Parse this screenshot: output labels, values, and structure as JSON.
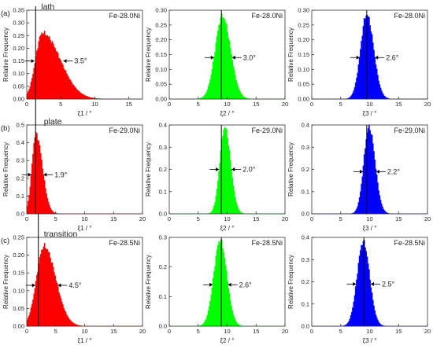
{
  "chart_data": [
    {
      "type": "area",
      "row_label": "(a)",
      "tag": "lath",
      "title": "Fe-28.0Ni",
      "ylabel": "Relative Frequency",
      "xlabel": "ξ1 / °",
      "color": "#ff0000",
      "xlim": [
        0,
        17
      ],
      "ylim": [
        0,
        0.35
      ],
      "xticks": [
        0,
        5,
        10,
        15
      ],
      "yticks": [
        0.0,
        0.05,
        0.1,
        0.15,
        0.2,
        0.25,
        0.3,
        0.35
      ],
      "peak_x": 2.3,
      "peak_y": 0.26,
      "sigma_left": 1.0,
      "sigma_right": 2.6,
      "vline_x": 1.3,
      "fwhm_label": "3.5°",
      "fwhm_y": 0.15
    },
    {
      "type": "area",
      "title": "Fe-28.0Ni",
      "ylabel": "Relative Frequency",
      "xlabel": "ξ2 / °",
      "color": "#00ff00",
      "xlim": [
        0,
        20
      ],
      "ylim": [
        0,
        0.3
      ],
      "xticks": [
        0,
        5,
        10,
        15,
        20
      ],
      "yticks": [
        0.0,
        0.05,
        0.1,
        0.15,
        0.2,
        0.25,
        0.3
      ],
      "peak_x": 9.2,
      "peak_y": 0.28,
      "sigma_left": 1.25,
      "sigma_right": 1.4,
      "vline_x": 9.0,
      "fwhm_label": "3.0°",
      "fwhm_y": 0.14
    },
    {
      "type": "area",
      "title": "Fe-28.0Ni",
      "ylabel": "Relative Frequency",
      "xlabel": "ξ3 / °",
      "color": "#0000ff",
      "xlim": [
        0,
        20
      ],
      "ylim": [
        0,
        0.3
      ],
      "xticks": [
        0,
        5,
        10,
        15,
        20
      ],
      "yticks": [
        0.0,
        0.05,
        0.1,
        0.15,
        0.2,
        0.25,
        0.3
      ],
      "peak_x": 9.5,
      "peak_y": 0.285,
      "sigma_left": 1.05,
      "sigma_right": 1.2,
      "vline_x": 9.5,
      "fwhm_label": "2.6°",
      "fwhm_y": 0.14
    },
    {
      "type": "area",
      "row_label": "(b)",
      "tag": "plate",
      "title": "Fe-29.0Ni",
      "ylabel": "Relative Frequency",
      "xlabel": "ξ1 / °",
      "color": "#ff0000",
      "xlim": [
        0,
        20
      ],
      "ylim": [
        0,
        0.5
      ],
      "xticks": [
        0,
        5,
        10,
        15,
        20
      ],
      "yticks": [
        0.0,
        0.1,
        0.2,
        0.3,
        0.4,
        0.5
      ],
      "peak_x": 1.6,
      "peak_y": 0.45,
      "sigma_left": 0.7,
      "sigma_right": 1.1,
      "vline_x": 2.0,
      "fwhm_label": "1.9°",
      "fwhm_y": 0.22
    },
    {
      "type": "area",
      "title": "Fe-29.0Ni",
      "ylabel": "Relative Frequency",
      "xlabel": "ξ2 / °",
      "color": "#00ff00",
      "xlim": [
        0,
        20
      ],
      "ylim": [
        0,
        0.4
      ],
      "xticks": [
        0,
        5,
        10,
        15,
        20
      ],
      "yticks": [
        0.0,
        0.1,
        0.2,
        0.3,
        0.4
      ],
      "peak_x": 9.6,
      "peak_y": 0.39,
      "sigma_left": 0.85,
      "sigma_right": 1.0,
      "vline_x": 9.0,
      "fwhm_label": "2.0°",
      "fwhm_y": 0.2
    },
    {
      "type": "area",
      "title": "Fe-29.0Ni",
      "ylabel": "Relative Frequency",
      "xlabel": "ξ3 / °",
      "color": "#0000ff",
      "xlim": [
        0,
        20
      ],
      "ylim": [
        0,
        0.4
      ],
      "xticks": [
        0,
        5,
        10,
        15,
        20
      ],
      "yticks": [
        0.0,
        0.1,
        0.2,
        0.3,
        0.4
      ],
      "peak_x": 9.9,
      "peak_y": 0.39,
      "sigma_left": 0.9,
      "sigma_right": 1.05,
      "vline_x": 9.5,
      "fwhm_label": "2.2°",
      "fwhm_y": 0.19
    },
    {
      "type": "area",
      "row_label": "(c)",
      "tag": "transition",
      "title": "Fe-28.5Ni",
      "ylabel": "Relative Frequency",
      "xlabel": "ξ1 / °",
      "color": "#ff0000",
      "xlim": [
        0,
        20
      ],
      "ylim": [
        0,
        0.25
      ],
      "xticks": [
        0,
        5,
        10,
        15,
        20
      ],
      "yticks": [
        0.0,
        0.05,
        0.1,
        0.15,
        0.2,
        0.25
      ],
      "peak_x": 3.0,
      "peak_y": 0.225,
      "sigma_left": 1.3,
      "sigma_right": 2.0,
      "vline_x": 2.0,
      "fwhm_label": "4.5°",
      "fwhm_y": 0.115
    },
    {
      "type": "area",
      "title": "Fe-28.5Ni",
      "ylabel": "Relative Frequency",
      "xlabel": "ξ2 / °",
      "color": "#00ff00",
      "xlim": [
        0,
        20
      ],
      "ylim": [
        0,
        0.3
      ],
      "xticks": [
        0,
        5,
        10,
        15,
        20
      ],
      "yticks": [
        0.0,
        0.1,
        0.2,
        0.3
      ],
      "peak_x": 8.8,
      "peak_y": 0.29,
      "sigma_left": 1.1,
      "sigma_right": 1.15,
      "vline_x": 9.0,
      "fwhm_label": "2.6°",
      "fwhm_y": 0.14
    },
    {
      "type": "area",
      "title": "Fe-28.5Ni",
      "ylabel": "Relative Frequency",
      "xlabel": "ξ3 / °",
      "color": "#0000ff",
      "xlim": [
        0,
        20
      ],
      "ylim": [
        0,
        0.4
      ],
      "xticks": [
        0,
        5,
        10,
        15,
        20
      ],
      "yticks": [
        0.0,
        0.1,
        0.2,
        0.3,
        0.4
      ],
      "peak_x": 8.9,
      "peak_y": 0.38,
      "sigma_left": 1.05,
      "sigma_right": 1.1,
      "vline_x": 9.0,
      "fwhm_label": "2.5°",
      "fwhm_y": 0.19
    }
  ]
}
